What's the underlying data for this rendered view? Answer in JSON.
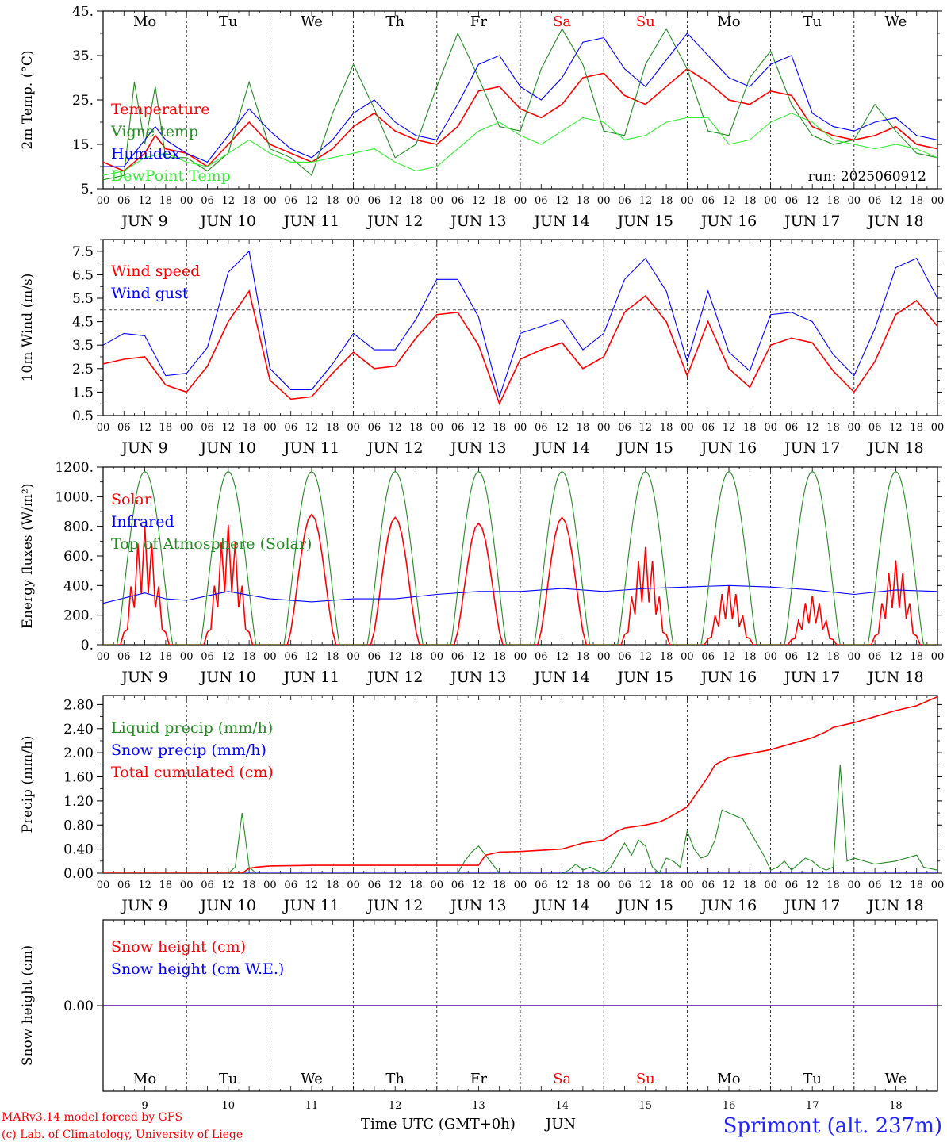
{
  "run_label": "run: 2025060912",
  "footer": {
    "model": "MARv3.14 model forced by GFS",
    "credit": "(c) Lab. of Climatology, University of Liege",
    "xlabel": "Time UTC (GMT+0h)",
    "month": "JUN",
    "station": "Sprimont (alt. 237m)"
  },
  "days": [
    "Mo",
    "Tu",
    "We",
    "Th",
    "Fr",
    "Sa",
    "Su",
    "Mo",
    "Tu",
    "We"
  ],
  "weekend_days": [
    "Sa",
    "Su"
  ],
  "dates": [
    "9",
    "10",
    "11",
    "12",
    "13",
    "14",
    "15",
    "16",
    "17",
    "18"
  ],
  "date_labels": [
    "JUN  9",
    "JUN 10",
    "JUN 11",
    "JUN 12",
    "JUN 13",
    "JUN 14",
    "JUN 15",
    "JUN 16",
    "JUN 17",
    "JUN 18"
  ],
  "hour_ticks": [
    "00",
    "06",
    "12",
    "18"
  ],
  "colors": {
    "red": "#ff0000",
    "dkred": "#dd0000",
    "green": "#228b22",
    "blue": "#0000ff",
    "lgreen": "#33ee33",
    "dblue": "#0000cc"
  },
  "chart_data": [
    {
      "id": "temp",
      "type": "line",
      "ylabel": "2m Temp. (°C)",
      "ylim": [
        5,
        45
      ],
      "yticks": [
        "5.",
        "15.",
        "25.",
        "35.",
        "45."
      ],
      "x_unit": "hours since 2025-06-09 00 UTC",
      "series": [
        {
          "name": "Temperature",
          "color": "red",
          "x": [
            0,
            6,
            12,
            15,
            18,
            24,
            30,
            36,
            42,
            48,
            54,
            60,
            66,
            72,
            78,
            84,
            90,
            96,
            102,
            108,
            114,
            120,
            126,
            132,
            138,
            144,
            150,
            156,
            162,
            168,
            174,
            180,
            186,
            192,
            198,
            204,
            210,
            216,
            222,
            228,
            234,
            240
          ],
          "y": [
            11,
            9,
            13,
            17,
            14,
            13,
            10,
            15,
            20,
            15,
            13,
            11,
            14,
            19,
            22,
            18,
            16,
            15,
            19,
            27,
            28,
            23,
            21,
            24,
            30,
            31,
            26,
            24,
            28,
            32,
            29,
            25,
            24,
            27,
            26,
            19,
            17,
            16,
            17,
            19,
            15,
            14
          ]
        },
        {
          "name": "Vigne temp",
          "color": "green",
          "x": [
            0,
            6,
            9,
            12,
            15,
            18,
            24,
            30,
            36,
            42,
            48,
            54,
            60,
            66,
            72,
            78,
            84,
            90,
            96,
            102,
            108,
            114,
            120,
            126,
            132,
            138,
            144,
            150,
            156,
            162,
            168,
            174,
            180,
            186,
            192,
            198,
            204,
            210,
            216,
            222,
            228,
            234,
            240
          ],
          "y": [
            7,
            8,
            29,
            15,
            28,
            12,
            12,
            9,
            13,
            29,
            14,
            12,
            8,
            22,
            33,
            23,
            12,
            15,
            28,
            40,
            30,
            19,
            18,
            32,
            41,
            33,
            18,
            17,
            33,
            41,
            32,
            18,
            17,
            30,
            36,
            24,
            17,
            15,
            16,
            24,
            18,
            13,
            12
          ]
        },
        {
          "name": "Humidex",
          "color": "blue",
          "x": [
            0,
            6,
            12,
            15,
            18,
            24,
            30,
            36,
            42,
            48,
            54,
            60,
            66,
            72,
            78,
            84,
            90,
            96,
            102,
            108,
            114,
            120,
            126,
            132,
            138,
            144,
            150,
            156,
            162,
            168,
            174,
            180,
            186,
            192,
            198,
            204,
            210,
            216,
            222,
            228,
            234,
            240
          ],
          "y": [
            10,
            10,
            16,
            19,
            16,
            13,
            11,
            17,
            23,
            18,
            14,
            12,
            16,
            22,
            25,
            20,
            17,
            16,
            24,
            33,
            35,
            28,
            25,
            30,
            38,
            39,
            32,
            28,
            34,
            40,
            35,
            30,
            28,
            33,
            35,
            22,
            19,
            18,
            20,
            21,
            17,
            16
          ]
        },
        {
          "name": "DewPoint Temp",
          "color": "lgreen",
          "x": [
            0,
            6,
            12,
            18,
            24,
            30,
            36,
            42,
            48,
            54,
            60,
            66,
            72,
            78,
            84,
            90,
            96,
            102,
            108,
            114,
            120,
            126,
            132,
            138,
            144,
            150,
            156,
            162,
            168,
            174,
            180,
            186,
            192,
            198,
            204,
            210,
            216,
            222,
            228,
            234,
            240
          ],
          "y": [
            8,
            9,
            12,
            13,
            11,
            10,
            13,
            16,
            13,
            11,
            11,
            12,
            13,
            14,
            11,
            9,
            10,
            14,
            18,
            20,
            17,
            15,
            18,
            21,
            20,
            16,
            17,
            20,
            21,
            21,
            15,
            16,
            20,
            22,
            20,
            16,
            15,
            14,
            15,
            14,
            12
          ]
        }
      ]
    },
    {
      "id": "wind",
      "type": "line",
      "ylabel": "10m Wind (m/s)",
      "ylim": [
        0.5,
        8
      ],
      "yticks": [
        "0.5",
        "1.5",
        "2.5",
        "3.5",
        "4.5",
        "5.5",
        "6.5",
        "7.5"
      ],
      "reference_line": 5,
      "series": [
        {
          "name": "Wind speed",
          "color": "red",
          "x": [
            0,
            6,
            12,
            18,
            24,
            30,
            36,
            42,
            48,
            54,
            60,
            66,
            72,
            78,
            84,
            90,
            96,
            102,
            108,
            114,
            120,
            126,
            132,
            138,
            144,
            150,
            156,
            162,
            168,
            174,
            180,
            186,
            192,
            198,
            204,
            210,
            216,
            222,
            228,
            234,
            240
          ],
          "y": [
            2.7,
            2.9,
            3.0,
            1.8,
            1.5,
            2.6,
            4.5,
            5.8,
            2.0,
            1.2,
            1.3,
            2.3,
            3.2,
            2.5,
            2.6,
            3.8,
            4.8,
            4.9,
            3.5,
            1.0,
            2.9,
            3.3,
            3.6,
            2.5,
            3.0,
            4.9,
            5.6,
            4.5,
            2.2,
            4.5,
            2.5,
            1.7,
            3.5,
            3.8,
            3.6,
            2.4,
            1.5,
            2.8,
            4.8,
            5.4,
            4.3
          ]
        },
        {
          "name": "Wind gust",
          "color": "blue",
          "x": [
            0,
            6,
            12,
            18,
            24,
            30,
            36,
            42,
            48,
            54,
            60,
            66,
            72,
            78,
            84,
            90,
            96,
            102,
            108,
            114,
            120,
            126,
            132,
            138,
            144,
            150,
            156,
            162,
            168,
            174,
            180,
            186,
            192,
            198,
            204,
            210,
            216,
            222,
            228,
            234,
            240
          ],
          "y": [
            3.5,
            4.0,
            3.9,
            2.2,
            2.3,
            3.4,
            6.6,
            7.5,
            2.5,
            1.6,
            1.6,
            2.7,
            4.0,
            3.3,
            3.3,
            4.6,
            6.3,
            6.3,
            4.7,
            1.3,
            4.0,
            4.3,
            4.6,
            3.3,
            4.0,
            6.3,
            7.2,
            5.8,
            2.8,
            5.8,
            3.2,
            2.4,
            4.8,
            4.9,
            4.5,
            3.1,
            2.2,
            4.2,
            6.8,
            7.2,
            5.5
          ]
        }
      ]
    },
    {
      "id": "energy",
      "type": "line",
      "ylabel": "Energy fluxes (W/m²)",
      "ylim": [
        0,
        1200
      ],
      "yticks": [
        "0.",
        "200.",
        "400.",
        "600.",
        "800.",
        "1000.",
        "1200."
      ],
      "series": [
        {
          "name": "Solar",
          "color": "red",
          "daily_peaks": [
            800,
            810,
            880,
            860,
            820,
            860,
            660,
            400,
            330,
            570
          ]
        },
        {
          "name": "Infrared",
          "color": "blue",
          "x": [
            0,
            12,
            18,
            24,
            36,
            48,
            60,
            72,
            84,
            96,
            108,
            120,
            132,
            144,
            156,
            168,
            180,
            192,
            204,
            216,
            228,
            240
          ],
          "y": [
            280,
            350,
            310,
            300,
            360,
            310,
            290,
            310,
            310,
            340,
            360,
            360,
            380,
            360,
            380,
            390,
            400,
            390,
            370,
            340,
            370,
            360
          ]
        },
        {
          "name": "Top of Atmosphere (Solar)",
          "color": "green",
          "daily_peak": 1170
        }
      ]
    },
    {
      "id": "precip",
      "type": "line",
      "ylabel": "Precip (mm/h)",
      "ylim": [
        0,
        2.95
      ],
      "yticks": [
        "0.00",
        "0.40",
        "0.80",
        "1.20",
        "1.60",
        "2.00",
        "2.40",
        "2.80"
      ],
      "series": [
        {
          "name": "Liquid precip (mm/h)",
          "color": "green",
          "x": [
            0,
            36,
            38,
            40,
            42,
            44,
            48,
            96,
            102,
            104,
            106,
            108,
            114,
            120,
            132,
            134,
            136,
            138,
            140,
            142,
            144,
            146,
            150,
            152,
            154,
            156,
            158,
            160,
            162,
            164,
            166,
            168,
            170,
            172,
            174,
            176,
            178,
            180,
            184,
            190,
            192,
            194,
            196,
            198,
            200,
            202,
            204,
            206,
            208,
            210,
            212,
            214,
            216,
            222,
            228,
            234,
            236,
            240
          ],
          "y": [
            0,
            0,
            0.1,
            1.0,
            0.1,
            0,
            0,
            0,
            0,
            0.2,
            0.35,
            0.45,
            0,
            0,
            0,
            0.05,
            0.15,
            0.05,
            0.1,
            0.05,
            0,
            0.1,
            0.5,
            0.3,
            0.55,
            0.45,
            0.1,
            0,
            0.25,
            0.2,
            0.1,
            0.7,
            0.4,
            0.25,
            0.3,
            0.55,
            1.05,
            1.0,
            0.9,
            0.3,
            0.05,
            0.1,
            0.2,
            0.05,
            0.15,
            0.25,
            0.2,
            0.1,
            0.05,
            0.1,
            1.8,
            0.2,
            0.25,
            0.15,
            0.2,
            0.3,
            0.1,
            0.05
          ]
        },
        {
          "name": "Snow precip (mm/h)",
          "color": "blue",
          "x": [
            0,
            240
          ],
          "y": [
            0,
            0
          ]
        },
        {
          "name": "Total cumulated (cm)",
          "color": "red",
          "x": [
            0,
            40,
            42,
            44,
            48,
            60,
            96,
            108,
            110,
            114,
            120,
            132,
            138,
            144,
            148,
            150,
            156,
            160,
            162,
            168,
            174,
            176,
            180,
            192,
            198,
            204,
            208,
            210,
            216,
            222,
            228,
            234,
            240
          ],
          "y": [
            0,
            0,
            0.08,
            0.1,
            0.12,
            0.13,
            0.13,
            0.13,
            0.3,
            0.35,
            0.36,
            0.4,
            0.5,
            0.55,
            0.7,
            0.75,
            0.8,
            0.85,
            0.9,
            1.1,
            1.6,
            1.8,
            1.92,
            2.05,
            2.15,
            2.25,
            2.35,
            2.42,
            2.5,
            2.6,
            2.7,
            2.78,
            2.93
          ]
        }
      ]
    },
    {
      "id": "snow",
      "type": "line",
      "ylabel": "Snow height (cm)",
      "yticks": [
        "0.00"
      ],
      "series": [
        {
          "name": "Snow height (cm)",
          "color": "red",
          "x": [
            0,
            240
          ],
          "y": [
            0,
            0
          ]
        },
        {
          "name": "Snow height (cm W.E.)",
          "color": "blue",
          "x": [
            0,
            240
          ],
          "y": [
            0,
            0
          ]
        }
      ]
    }
  ]
}
